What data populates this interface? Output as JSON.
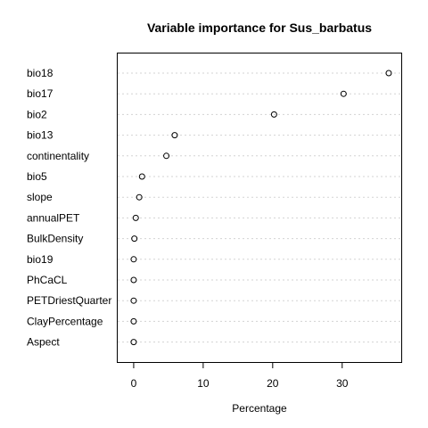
{
  "chart_data": {
    "type": "scatter",
    "title": "Variable importance for Sus_barbatus",
    "xlabel": "Percentage",
    "ylabel": "",
    "xlim": [
      -2.3,
      38.5
    ],
    "xticks": [
      0,
      10,
      20,
      30
    ],
    "grid": "horizontal dotted guides",
    "categories": [
      "bio18",
      "bio17",
      "bio2",
      "bio13",
      "continentality",
      "bio5",
      "slope",
      "annualPET",
      "BulkDensity",
      "bio19",
      "PhCaCL",
      "PETDriestQuarter",
      "ClayPercentage",
      "Aspect"
    ],
    "values": [
      36.7,
      30.2,
      20.2,
      5.9,
      4.7,
      1.2,
      0.8,
      0.3,
      0.1,
      0.0,
      0.0,
      0.0,
      0.0,
      0.0
    ]
  }
}
